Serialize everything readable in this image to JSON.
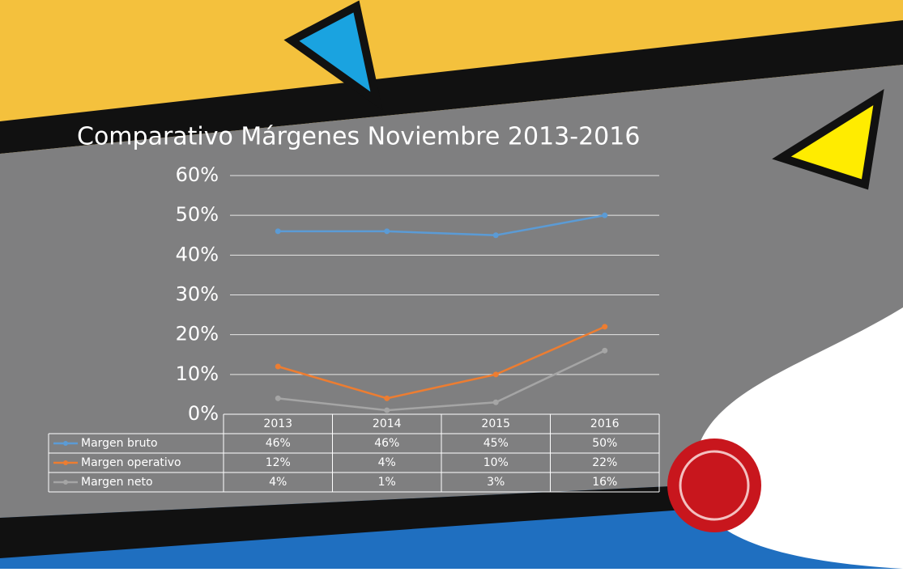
{
  "chart_data": {
    "type": "line",
    "title": "Comparativo Márgenes Noviembre 2013-2016",
    "categories": [
      "2013",
      "2014",
      "2015",
      "2016"
    ],
    "series": [
      {
        "name": "Margen bruto",
        "color": "#5b9bd5",
        "values": [
          46,
          46,
          45,
          50
        ],
        "value_labels": [
          "46%",
          "46%",
          "45%",
          "50%"
        ]
      },
      {
        "name": "Margen operativo",
        "color": "#ed7d31",
        "values": [
          12,
          4,
          10,
          22
        ],
        "value_labels": [
          "12%",
          "4%",
          "10%",
          "22%"
        ]
      },
      {
        "name": "Margen neto",
        "color": "#a5a5a5",
        "values": [
          4,
          1,
          3,
          16
        ],
        "value_labels": [
          "4%",
          "1%",
          "3%",
          "16%"
        ]
      }
    ],
    "ylim": [
      0,
      60
    ],
    "yticks": [
      {
        "value": 0,
        "label": "0%"
      },
      {
        "value": 10,
        "label": "10%"
      },
      {
        "value": 20,
        "label": "20%"
      },
      {
        "value": 30,
        "label": "30%"
      },
      {
        "value": 40,
        "label": "40%"
      },
      {
        "value": 50,
        "label": "50%"
      },
      {
        "value": 60,
        "label": "60%"
      }
    ],
    "grid": true
  }
}
